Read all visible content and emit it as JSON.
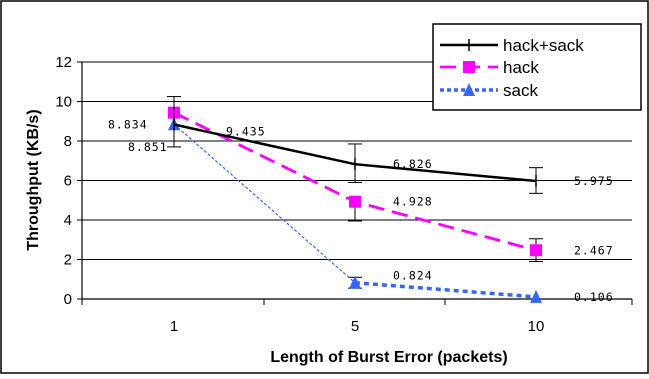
{
  "chart_data": {
    "type": "line",
    "xlabel": "Length of Burst Error (packets)",
    "ylabel": "Throughput (KB/s)",
    "categories": [
      "1",
      "5",
      "10"
    ],
    "ylim": [
      0,
      12
    ],
    "yticks": [
      "0",
      "2",
      "4",
      "6",
      "8",
      "10",
      "12"
    ],
    "grid": "horizontal",
    "legend_position": "top-right",
    "series": [
      {
        "name": "hack+sack",
        "values": [
          8.834,
          6.826,
          5.975
        ],
        "labels": [
          "8.834",
          "6.826",
          "5.975"
        ],
        "error_low": [
          7.7,
          5.9,
          5.35
        ],
        "error_high": [
          10.25,
          7.85,
          6.65
        ],
        "color": "#000000",
        "line_style": "solid",
        "marker": "plus"
      },
      {
        "name": "hack",
        "values": [
          9.435,
          4.928,
          2.467
        ],
        "labels": [
          "9.435",
          "4.928",
          "2.467"
        ],
        "error_low": [
          null,
          3.95,
          1.9
        ],
        "error_high": [
          null,
          null,
          3.05
        ],
        "color": "#ff00ff",
        "line_style": "dashed",
        "marker": "square"
      },
      {
        "name": "sack",
        "values": [
          8.851,
          0.824,
          0.106
        ],
        "labels": [
          "8.851",
          "0.824",
          "0.106"
        ],
        "error_low": [
          null,
          0.55,
          null
        ],
        "error_high": [
          null,
          1.1,
          null
        ],
        "color": "#3366ff",
        "line_style": "dotted",
        "marker": "triangle"
      }
    ]
  }
}
